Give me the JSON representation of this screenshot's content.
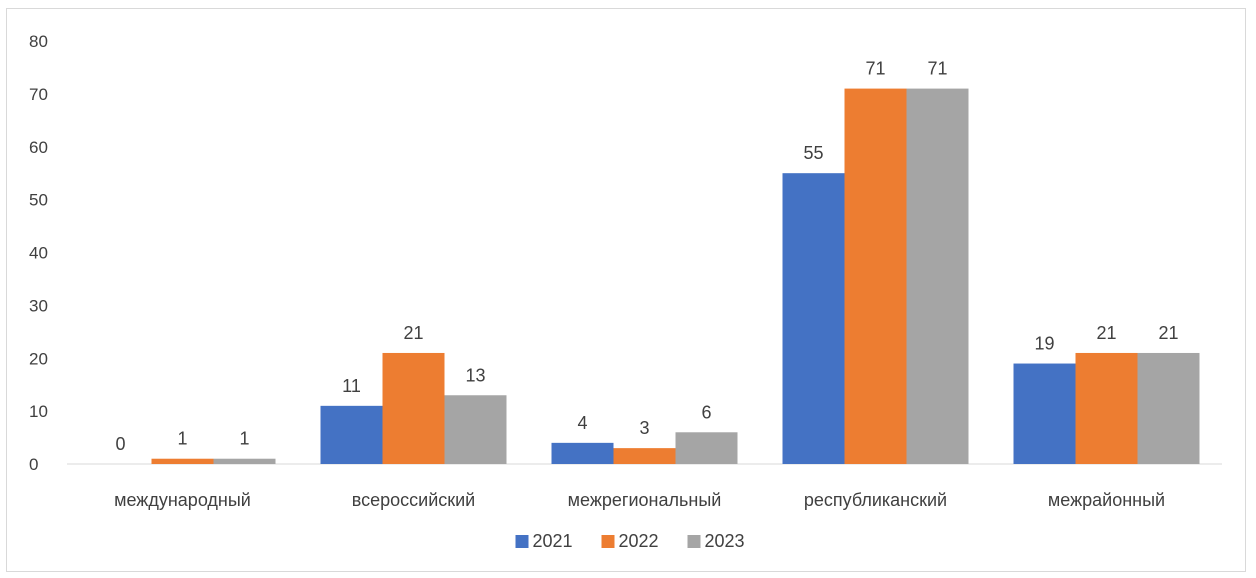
{
  "chart_data": {
    "type": "bar",
    "categories": [
      "международный",
      "всероссийский",
      "межрегиональный",
      "республиканский",
      "межрайонный"
    ],
    "series": [
      {
        "name": "2021",
        "color": "#4472C4",
        "values": [
          0,
          11,
          4,
          55,
          19
        ]
      },
      {
        "name": "2022",
        "color": "#ED7D31",
        "values": [
          1,
          21,
          3,
          71,
          21
        ]
      },
      {
        "name": "2023",
        "color": "#A5A5A5",
        "values": [
          1,
          13,
          6,
          71,
          21
        ]
      }
    ],
    "ylim": [
      0,
      80
    ],
    "yticks": [
      "0",
      "10",
      "20",
      "30",
      "40",
      "50",
      "60",
      "70",
      "80"
    ],
    "data_labels": true,
    "grid": false,
    "legend_position": "bottom"
  }
}
